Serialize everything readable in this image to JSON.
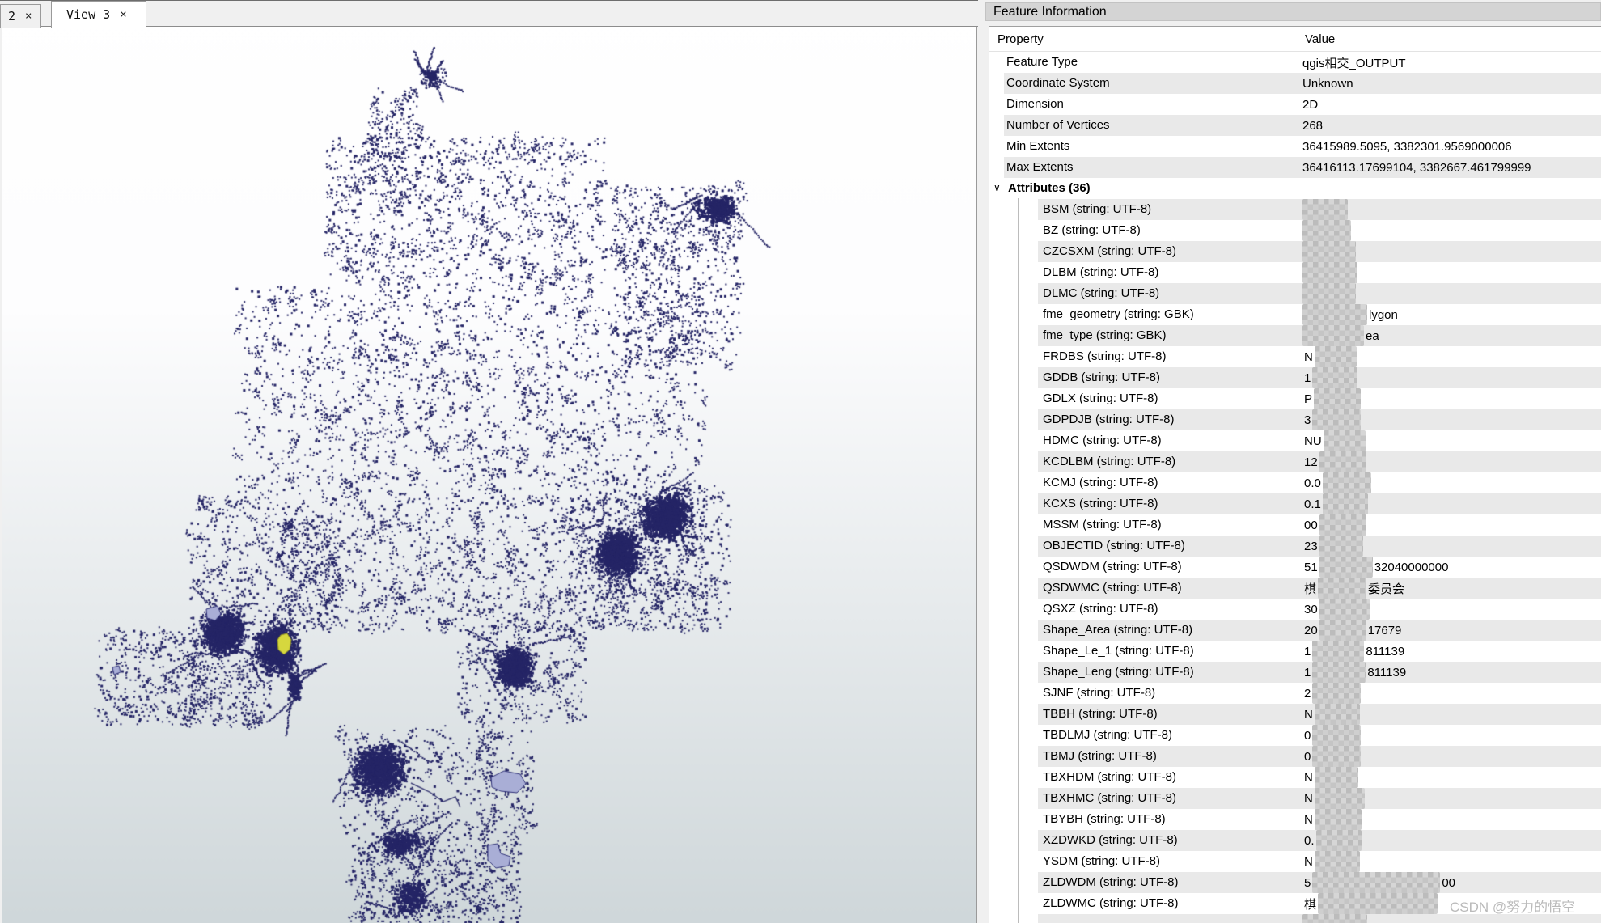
{
  "tabs": [
    {
      "label": "2"
    },
    {
      "label": "View 3",
      "active": true
    }
  ],
  "icons": {
    "close": "×",
    "chevron_down": "∨"
  },
  "panel": {
    "title": "Feature Information",
    "columns": {
      "property": "Property",
      "value": "Value"
    },
    "general": [
      {
        "label": "Feature Type",
        "value": "qgis相交_OUTPUT"
      },
      {
        "label": "Coordinate System",
        "value": "Unknown"
      },
      {
        "label": "Dimension",
        "value": "2D"
      },
      {
        "label": "Number of Vertices",
        "value": "268"
      },
      {
        "label": "Min Extents",
        "value": "36415989.5095, 3382301.9569000006"
      },
      {
        "label": "Max Extents",
        "value": "36416113.17699104, 3382667.461799999"
      }
    ],
    "attributes_header": "Attributes (36)",
    "attributes": [
      {
        "label": "BSM (string: UTF-8)",
        "pre": "",
        "mos": 56,
        "suf": ""
      },
      {
        "label": "BZ (string: UTF-8)",
        "pre": "",
        "mos": 60,
        "suf": ""
      },
      {
        "label": "CZCSXM (string: UTF-8)",
        "pre": "",
        "mos": 66,
        "suf": ""
      },
      {
        "label": "DLBM (string: UTF-8)",
        "pre": "",
        "mos": 68,
        "suf": ""
      },
      {
        "label": "DLMC (string: UTF-8)",
        "pre": "",
        "mos": 66,
        "suf": ""
      },
      {
        "label": "fme_geometry (string: GBK)",
        "pre": "",
        "mos": 80,
        "suf": "lygon"
      },
      {
        "label": "fme_type (string: GBK)",
        "pre": "",
        "mos": 76,
        "suf": "ea"
      },
      {
        "label": "FRDBS (string: UTF-8)",
        "pre": "N",
        "mos": 52,
        "suf": ""
      },
      {
        "label": "GDDB (string: UTF-8)",
        "pre": "1",
        "mos": 56,
        "suf": ""
      },
      {
        "label": "GDLX (string: UTF-8)",
        "pre": "P",
        "mos": 58,
        "suf": ""
      },
      {
        "label": "GDPDJB (string: UTF-8)",
        "pre": "3",
        "mos": 60,
        "suf": ""
      },
      {
        "label": "HDMC (string: UTF-8)",
        "pre": "NU",
        "mos": 52,
        "suf": ""
      },
      {
        "label": "KCDLBM (string: UTF-8)",
        "pre": "12",
        "mos": 58,
        "suf": ""
      },
      {
        "label": "KCMJ (string: UTF-8)",
        "pre": "0.0",
        "mos": 60,
        "suf": ""
      },
      {
        "label": "KCXS (string: UTF-8)",
        "pre": "0.1",
        "mos": 56,
        "suf": ""
      },
      {
        "label": "MSSM (string: UTF-8)",
        "pre": "00",
        "mos": 58,
        "suf": ""
      },
      {
        "label": "OBJECTID (string: UTF-8)",
        "pre": "23",
        "mos": 54,
        "suf": ""
      },
      {
        "label": "QSDWDM (string: UTF-8)",
        "pre": "51",
        "mos": 66,
        "suf": "32040000000"
      },
      {
        "label": "QSDWMC (string: UTF-8)",
        "pre": "棋",
        "mos": 60,
        "suf": "委员会"
      },
      {
        "label": "QSXZ (string: UTF-8)",
        "pre": "30",
        "mos": 62,
        "suf": ""
      },
      {
        "label": "Shape_Area (string: UTF-8)",
        "pre": "20",
        "mos": 58,
        "suf": "17679"
      },
      {
        "label": "Shape_Le_1 (string: UTF-8)",
        "pre": "1",
        "mos": 64,
        "suf": "811139"
      },
      {
        "label": "Shape_Leng (string: UTF-8)",
        "pre": "1",
        "mos": 66,
        "suf": "811139"
      },
      {
        "label": "SJNF (string: UTF-8)",
        "pre": "2",
        "mos": 60,
        "suf": ""
      },
      {
        "label": "TBBH (string: UTF-8)",
        "pre": "N",
        "mos": 56,
        "suf": ""
      },
      {
        "label": "TBDLMJ (string: UTF-8)",
        "pre": "0",
        "mos": 60,
        "suf": ""
      },
      {
        "label": "TBMJ (string: UTF-8)",
        "pre": "0",
        "mos": 60,
        "suf": ""
      },
      {
        "label": "TBXHDM (string: UTF-8)",
        "pre": "N",
        "mos": 54,
        "suf": ""
      },
      {
        "label": "TBXHMC (string: UTF-8)",
        "pre": "N",
        "mos": 62,
        "suf": ""
      },
      {
        "label": "TBYBH (string: UTF-8)",
        "pre": "N",
        "mos": 58,
        "suf": ""
      },
      {
        "label": "XZDWKD (string: UTF-8)",
        "pre": "0.",
        "mos": 56,
        "suf": ""
      },
      {
        "label": "YSDM (string: UTF-8)",
        "pre": "N",
        "mos": 56,
        "suf": ""
      },
      {
        "label": "ZLDWDM (string: UTF-8)",
        "pre": "5",
        "mos": 158,
        "suf": "00"
      },
      {
        "label": "ZLDWMC (string: UTF-8)",
        "pre": "棋",
        "mos": 148,
        "suf": ""
      }
    ],
    "partial_row": {
      "mos": 80
    }
  },
  "map": {
    "background_top": "#ffffff",
    "background_bottom": "#cfd7da",
    "feature_color": "#252566",
    "selected_color": "#d6d73e",
    "selected_outline": "#8f9026",
    "neighbor_color": "#a9aed6",
    "neighbor_outline": "#32347a"
  },
  "watermark": "CSDN @努力的悟空"
}
